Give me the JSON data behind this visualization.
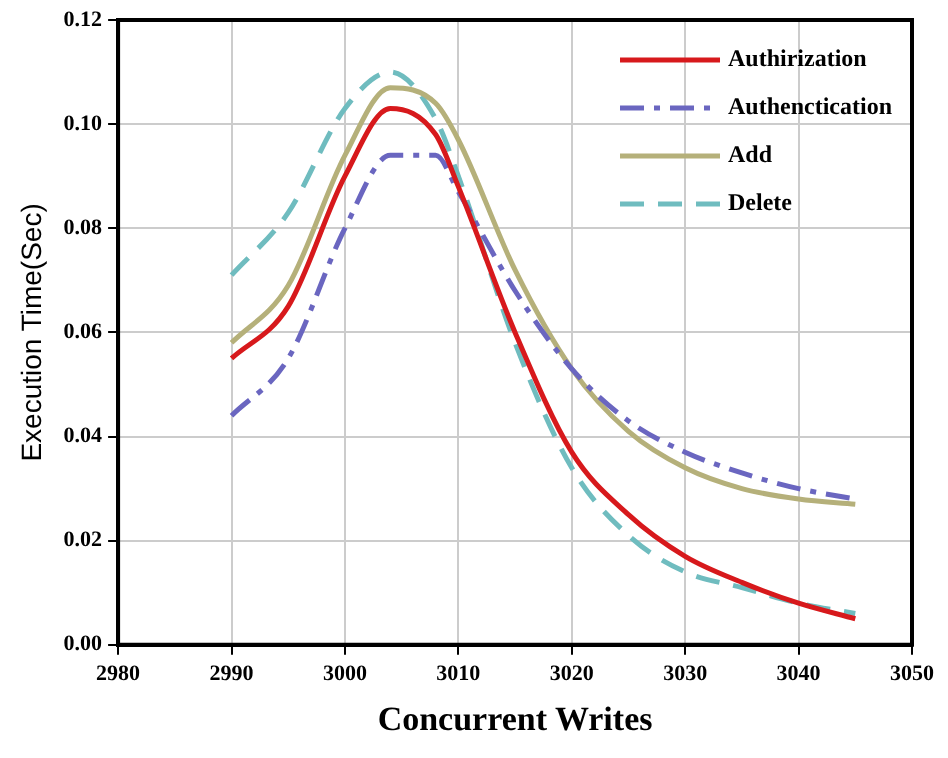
{
  "chart_data": {
    "type": "line",
    "xlabel": "Concurrent Writes",
    "ylabel": "Execution Time(Sec)",
    "x": [
      2990,
      2995,
      3000,
      3004,
      3008,
      3010,
      3015,
      3020,
      3025,
      3030,
      3035,
      3040,
      3045
    ],
    "series": [
      {
        "name": "Authirization",
        "color": "#d7191c",
        "line_style": "solid",
        "values": [
          0.055,
          0.065,
          0.09,
          0.103,
          0.098,
          0.088,
          0.06,
          0.037,
          0.025,
          0.017,
          0.012,
          0.008,
          0.005
        ]
      },
      {
        "name": "Authenctication",
        "color": "#6a66c0",
        "line_style": "dashdot",
        "values": [
          0.044,
          0.055,
          0.08,
          0.094,
          0.094,
          0.087,
          0.068,
          0.053,
          0.043,
          0.037,
          0.033,
          0.03,
          0.028
        ]
      },
      {
        "name": "Add",
        "color": "#b5b07a",
        "line_style": "solid",
        "values": [
          0.058,
          0.069,
          0.094,
          0.107,
          0.104,
          0.097,
          0.072,
          0.053,
          0.041,
          0.034,
          0.03,
          0.028,
          0.027
        ]
      },
      {
        "name": "Delete",
        "color": "#6fbcbf",
        "line_style": "dashed",
        "values": [
          0.071,
          0.083,
          0.103,
          0.11,
          0.101,
          0.09,
          0.058,
          0.034,
          0.021,
          0.014,
          0.011,
          0.008,
          0.006
        ]
      }
    ],
    "xlim": [
      2980,
      3050
    ],
    "xticks": [
      2980,
      2990,
      3000,
      3010,
      3020,
      3030,
      3040,
      3050
    ],
    "ylim": [
      0,
      0.12
    ],
    "yticks": [
      {
        "value": 0,
        "label": "0.00"
      },
      {
        "value": 0.02,
        "label": "0.02"
      },
      {
        "value": 0.04,
        "label": "0.04"
      },
      {
        "value": 0.06,
        "label": "0.06"
      },
      {
        "value": 0.08,
        "label": "0.08"
      },
      {
        "value": 0.1,
        "label": "0.10"
      },
      {
        "value": 0.12,
        "label": "0.12"
      }
    ],
    "grid": true,
    "legend": "top right",
    "marker": "none"
  }
}
